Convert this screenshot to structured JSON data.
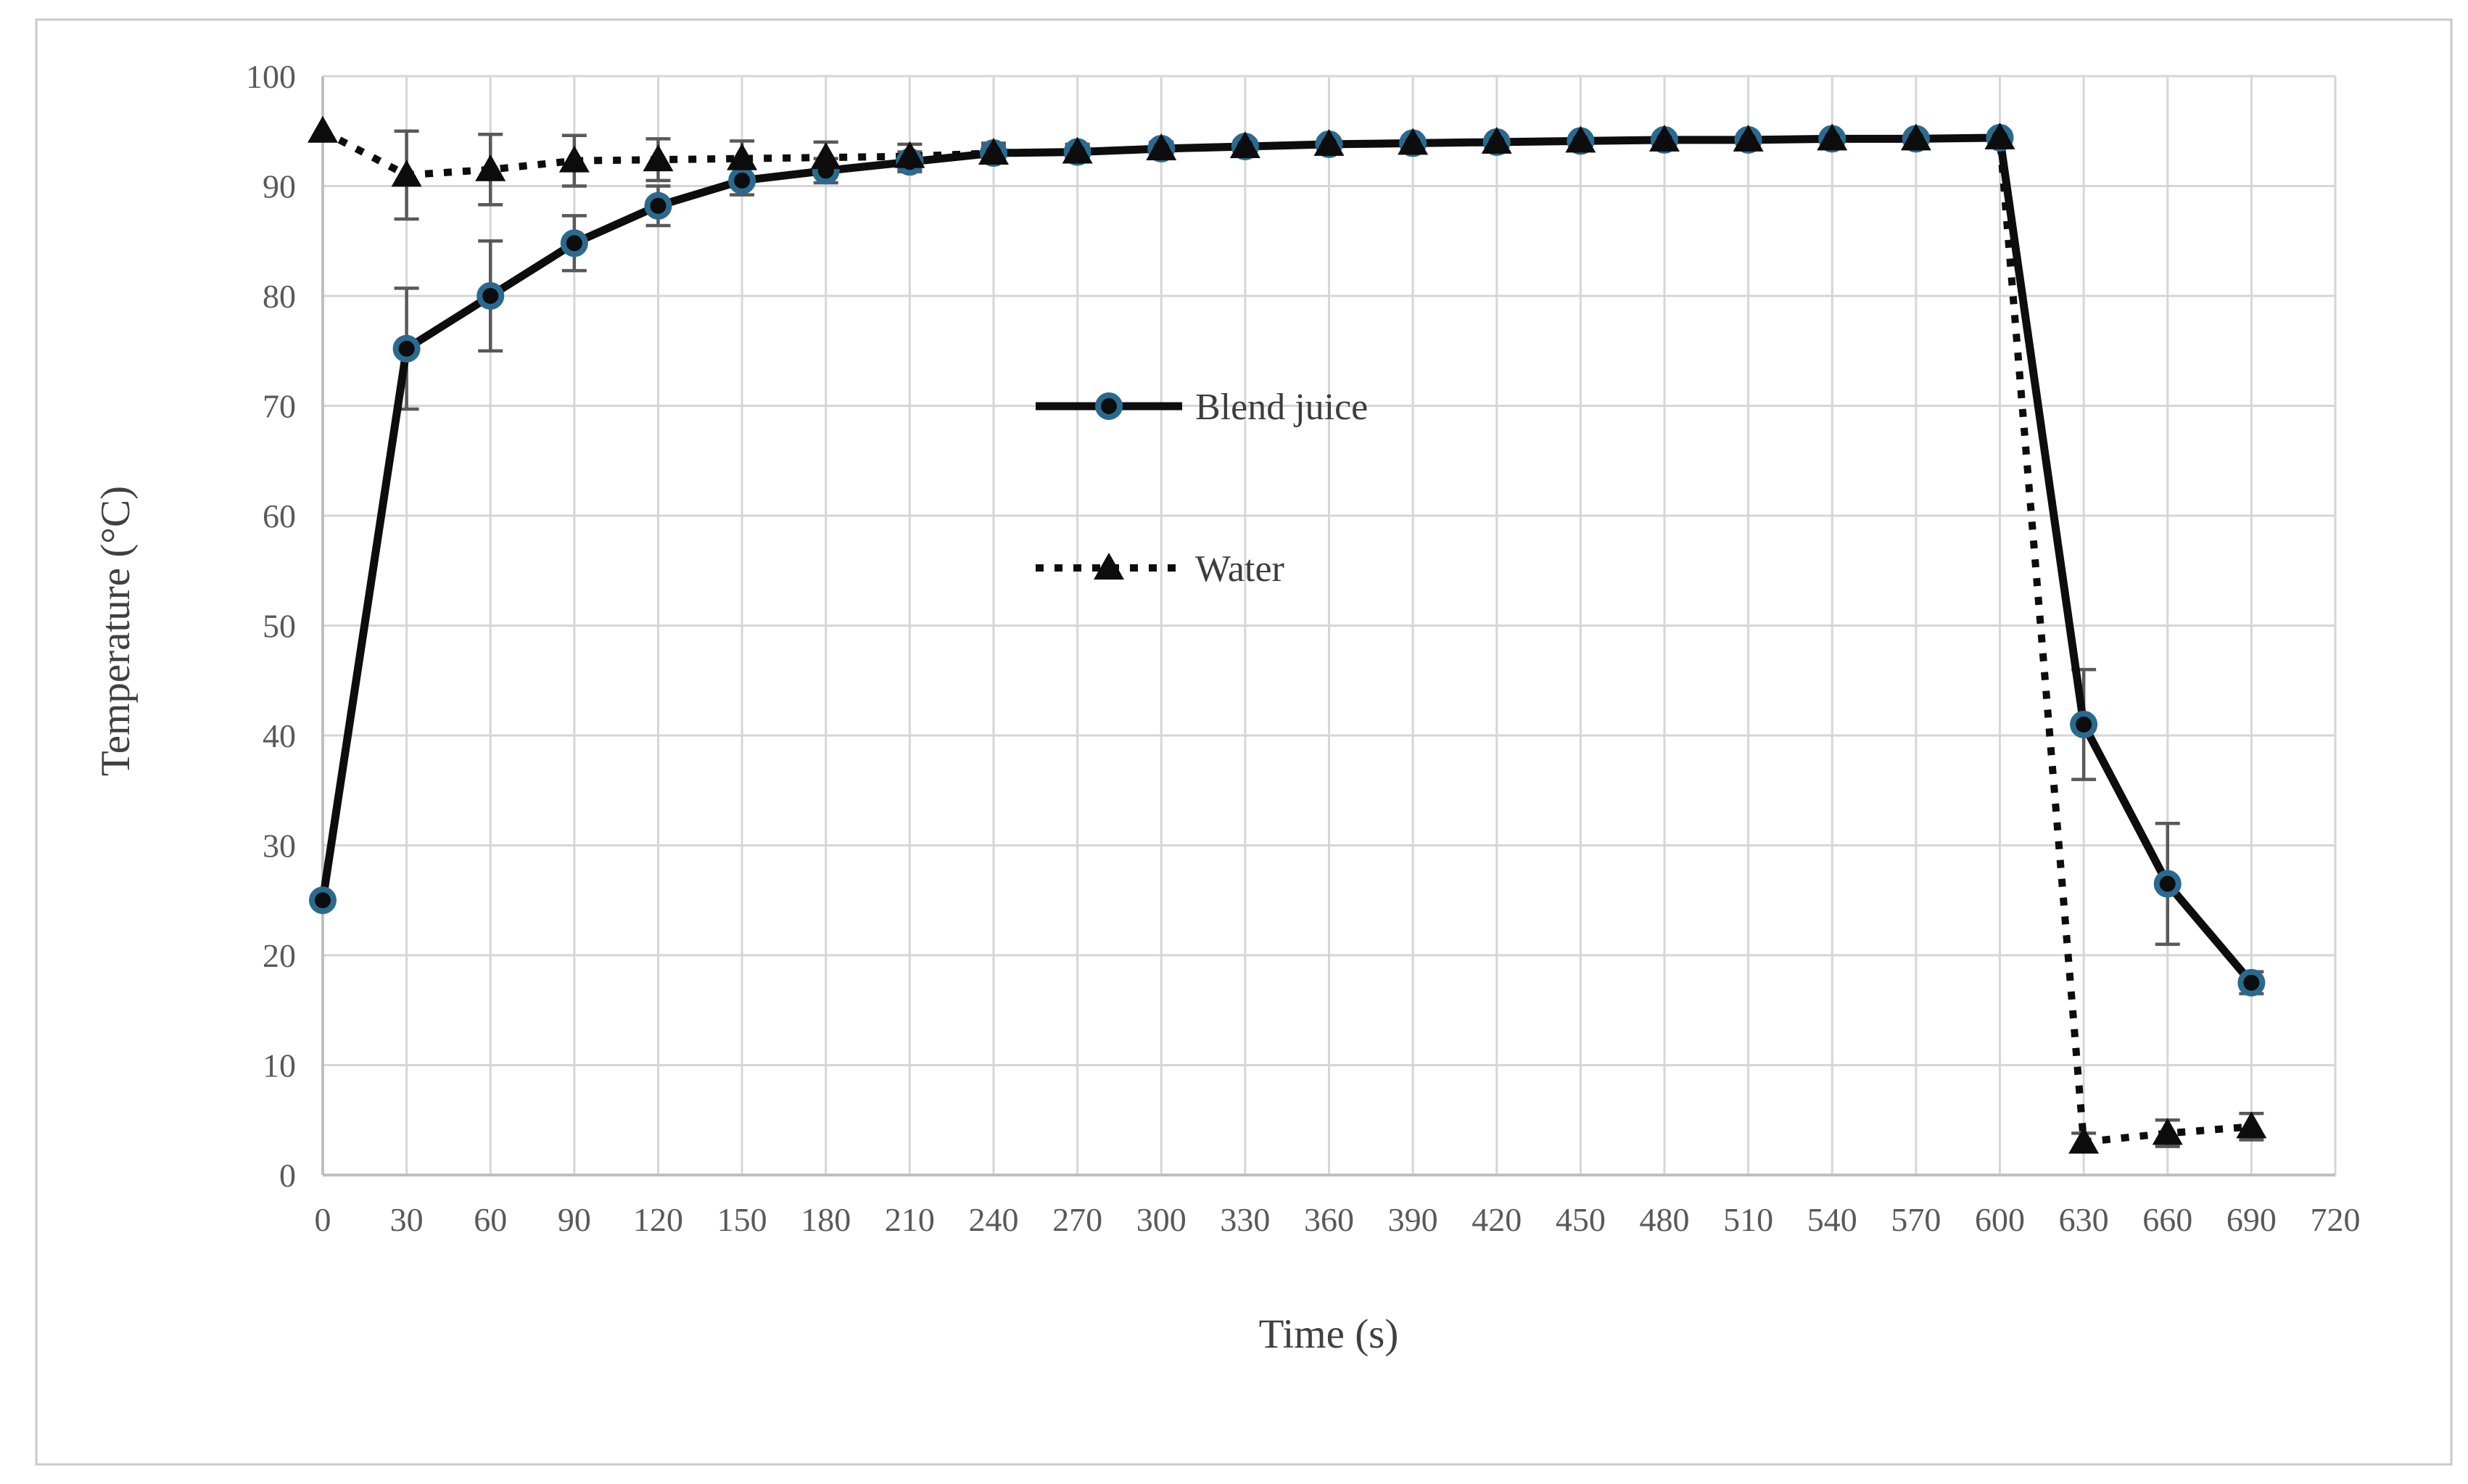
{
  "page": {
    "background": "#ffffff",
    "outer_border_color": "#c9c9c9"
  },
  "chart_data": {
    "type": "line",
    "title": "",
    "xlabel": "Time (s)",
    "ylabel": "Temperature (°C)",
    "x": [
      0,
      30,
      60,
      90,
      120,
      150,
      180,
      210,
      240,
      270,
      300,
      330,
      360,
      390,
      420,
      450,
      480,
      510,
      540,
      570,
      600,
      630,
      660,
      690
    ],
    "x_ticks": [
      0,
      30,
      60,
      90,
      120,
      150,
      180,
      210,
      240,
      270,
      300,
      330,
      360,
      390,
      420,
      450,
      480,
      510,
      540,
      570,
      600,
      630,
      660,
      690,
      720
    ],
    "y_ticks": [
      0,
      10,
      20,
      30,
      40,
      50,
      60,
      70,
      80,
      90,
      100
    ],
    "xlim": [
      0,
      720
    ],
    "ylim": [
      0,
      100
    ],
    "grid": true,
    "legend_position": "inside-center-left",
    "series": [
      {
        "name": "Blend juice",
        "marker": "circle",
        "line_style": "solid",
        "line_color": "#0d0d0d",
        "marker_fill": "#0d0d0d",
        "marker_stroke": "#2b6a8f",
        "values": [
          25,
          75.2,
          80,
          84.8,
          88.2,
          90.5,
          91.4,
          92.2,
          93,
          93.1,
          93.4,
          93.6,
          93.8,
          93.9,
          94,
          94.1,
          94.2,
          94.2,
          94.3,
          94.3,
          94.4,
          41,
          26.5,
          17.5
        ],
        "errors": [
          0,
          5.5,
          5,
          2.5,
          1.8,
          1.3,
          1.1,
          0.9,
          0.7,
          0.6,
          0.5,
          0.4,
          0.4,
          0.3,
          0.3,
          0.3,
          0.3,
          0.3,
          0.3,
          0.3,
          0.5,
          5,
          5.5,
          1
        ]
      },
      {
        "name": "Water",
        "marker": "triangle",
        "line_style": "dotted",
        "line_color": "#0d0d0d",
        "marker_fill": "#0d0d0d",
        "marker_stroke": "#0d0d0d",
        "values": [
          95,
          91,
          91.5,
          92.3,
          92.4,
          92.5,
          92.6,
          92.7,
          93,
          93.1,
          93.4,
          93.6,
          93.8,
          93.9,
          94,
          94.1,
          94.2,
          94.2,
          94.3,
          94.3,
          94.4,
          3,
          3.8,
          4.4
        ],
        "errors": [
          0,
          4,
          3.2,
          2.3,
          1.9,
          1.6,
          1.4,
          1.1,
          0.9,
          0.7,
          0.6,
          0.5,
          0.4,
          0.4,
          0.3,
          0.3,
          0.3,
          0.3,
          0.3,
          0.3,
          0.3,
          0.8,
          1.2,
          1.2
        ]
      }
    ],
    "colors": {
      "grid": "#d6d6d6",
      "axis": "#bfbfbf",
      "error_bar": "#595959",
      "tick_text": "#595959",
      "axis_title_text": "#404040",
      "legend_text": "#3d3d3d"
    }
  }
}
